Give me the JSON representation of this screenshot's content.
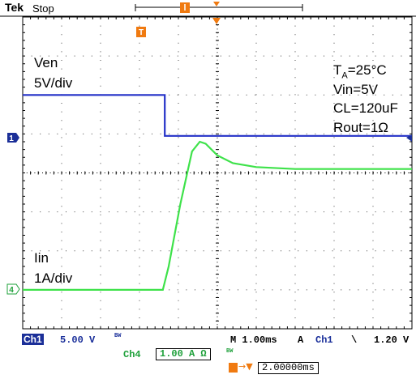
{
  "header": {
    "brand": "Tek",
    "status": "Stop"
  },
  "annotations": {
    "ch1_name": "Ven",
    "ch1_scale": "5V/div",
    "ch4_name": "Iin",
    "ch4_scale": "1A/div",
    "ta_symbol": "T",
    "ta_sub": "A",
    "ta_rest": "=25°C",
    "vin": "Vin=5V",
    "cl": "CL=120uF",
    "rout": "Rout=1Ω"
  },
  "markers": {
    "ch1": "1",
    "ch4": "4",
    "trigger": "T"
  },
  "footer": {
    "ch1_label": "Ch1",
    "ch1_scale": "5.00 V",
    "ch1_bw": "BW",
    "ch4_label": "Ch4",
    "ch4_scale": "1.00 A Ω",
    "ch4_bw": "BW",
    "timebase": "M 1.00ms",
    "trig_mode": "A",
    "trig_source": "Ch1",
    "trig_slope": "\\",
    "trig_level": "1.20 V",
    "trig_position": "2.00000ms"
  },
  "colors": {
    "ch1": "#2431c8",
    "ch4": "#3ee24a",
    "trigger": "#f07a10",
    "grid": "#000000"
  },
  "chart_data": {
    "type": "line",
    "grid": true,
    "x_divisions": 10,
    "y_divisions": 8,
    "series": [
      {
        "x": [
          0,
          3.65,
          3.65,
          10
        ],
        "y": [
          2.0,
          2.0,
          0.95,
          0.95
        ]
      },
      {
        "x": [
          0,
          3.6,
          3.75,
          4.05,
          4.35,
          4.55,
          4.7,
          5.0,
          5.4,
          6.0,
          7.0,
          8.0,
          10
        ],
        "y": [
          -3.0,
          -3.0,
          -2.4,
          -0.8,
          0.55,
          0.8,
          0.75,
          0.45,
          0.25,
          0.15,
          0.1,
          0.1,
          0.1
        ]
      }
    ]
  }
}
